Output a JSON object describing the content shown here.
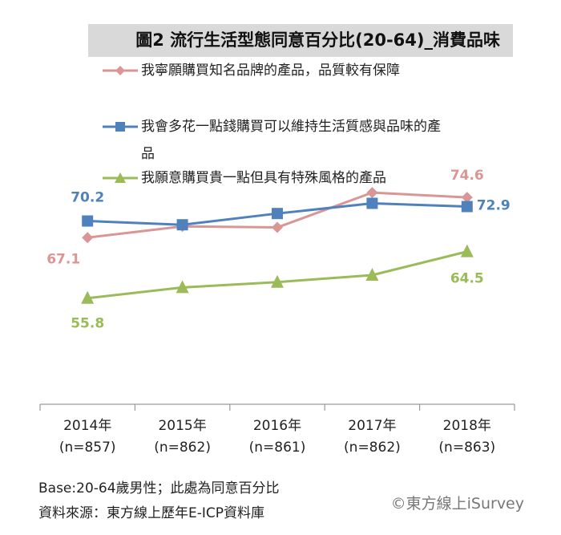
{
  "title": "圖2 流行生活型態同意百分比(20-64)_消費品味",
  "chart_data": {
    "type": "line",
    "categories": [
      "2014年\n(n=857)",
      "2015年\n(n=862)",
      "2016年\n(n=861)",
      "2017年\n(n=862)",
      "2018年\n(n=863)"
    ],
    "series": [
      {
        "name": "我寧願購買知名品牌的產品，品質較有保障",
        "values": [
          67.1,
          69.2,
          69.0,
          75.5,
          74.6
        ],
        "color": "#d99694",
        "marker": "diamond",
        "labels": [
          "67.1",
          "",
          "",
          "",
          "74.6"
        ]
      },
      {
        "name": "我會多花一點錢購買可以維持生活質感與品味的產品",
        "values": [
          70.2,
          69.5,
          71.6,
          73.5,
          72.9
        ],
        "color": "#4f81bd",
        "marker": "square",
        "labels": [
          "70.2",
          "",
          "",
          "",
          "72.9"
        ]
      },
      {
        "name": "我願意購買貴一點但具有特殊風格的產品",
        "values": [
          55.8,
          57.8,
          58.8,
          60.1,
          64.5
        ],
        "color": "#9bbb59",
        "marker": "triangle",
        "labels": [
          "55.8",
          "",
          "",
          "",
          "64.5"
        ]
      }
    ],
    "ylim": [
      36,
      86
    ],
    "grid": false,
    "legend": "top"
  },
  "legend_lines": [
    [
      "我寧願購買知名品牌的產品，品質較有保障"
    ],
    [
      "我會多花一點錢購買可以維持生活質感與品味的產",
      "品"
    ],
    [
      "我願意購買貴一點但具有特殊風格的產品"
    ]
  ],
  "footnote": {
    "base": "Base:20-64歲男性；此處為同意百分比",
    "source": "資料來源：東方線上歷年E-ICP資料庫"
  },
  "credit": "©東方線上iSurvey"
}
